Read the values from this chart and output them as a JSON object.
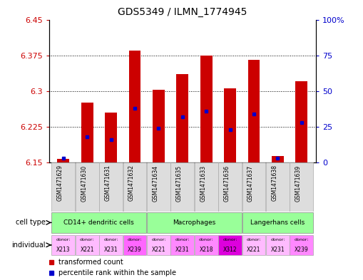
{
  "title": "GDS5349 / ILMN_1774945",
  "samples": [
    "GSM1471629",
    "GSM1471630",
    "GSM1471631",
    "GSM1471632",
    "GSM1471634",
    "GSM1471635",
    "GSM1471633",
    "GSM1471636",
    "GSM1471637",
    "GSM1471638",
    "GSM1471639"
  ],
  "red_values": [
    6.158,
    6.275,
    6.255,
    6.385,
    6.302,
    6.335,
    6.375,
    6.305,
    6.365,
    6.163,
    6.32
  ],
  "blue_values_pct": [
    3,
    18,
    16,
    38,
    24,
    32,
    36,
    23,
    34,
    3,
    28
  ],
  "ylim_left": [
    6.15,
    6.45
  ],
  "ylim_right": [
    0,
    100
  ],
  "yticks_left": [
    6.15,
    6.225,
    6.3,
    6.375,
    6.45
  ],
  "yticks_right": [
    0,
    25,
    50,
    75,
    100
  ],
  "ytick_labels_right": [
    "0",
    "25",
    "50",
    "75",
    "100%"
  ],
  "individuals": [
    "X213",
    "X221",
    "X231",
    "X239",
    "X221",
    "X231",
    "X218",
    "X312",
    "X221",
    "X231",
    "X239"
  ],
  "ind_colors": [
    "#ffbbff",
    "#ffbbff",
    "#ffbbff",
    "#ff66ff",
    "#ffbbff",
    "#ff88ff",
    "#ff88ff",
    "#dd00dd",
    "#ffbbff",
    "#ffbbff",
    "#ff88ff"
  ],
  "cell_group_labels": [
    "CD14+ dendritic cells",
    "Macrophages",
    "Langerhans cells"
  ],
  "cell_group_starts": [
    0,
    4,
    8
  ],
  "cell_group_ends": [
    4,
    8,
    11
  ],
  "cell_group_color": "#99ff99",
  "bar_color": "#cc0000",
  "dot_color": "#0000cc",
  "baseline": 6.15,
  "left_tick_color": "#cc0000",
  "right_tick_color": "#0000cc",
  "label_area_bg": "#dddddd"
}
